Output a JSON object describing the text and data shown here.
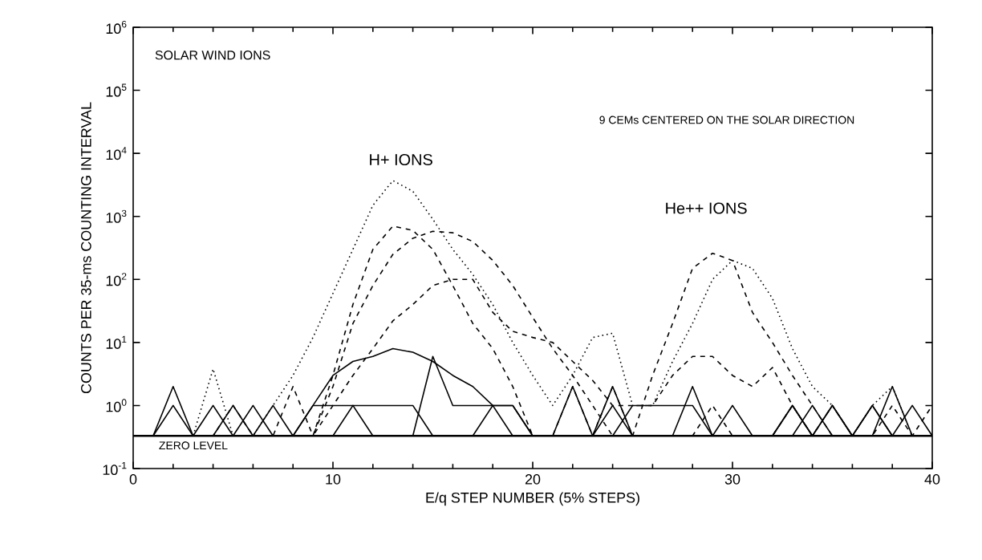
{
  "chart_data": {
    "type": "line",
    "xlabel": "E/q  STEP NUMBER  (5% STEPS)",
    "ylabel": "COUNTS PER 35-ms COUNTING INTERVAL",
    "x": [
      1,
      2,
      3,
      4,
      5,
      6,
      7,
      8,
      9,
      10,
      11,
      12,
      13,
      14,
      15,
      16,
      17,
      18,
      19,
      20,
      21,
      22,
      23,
      24,
      25,
      26,
      27,
      28,
      29,
      30,
      31,
      32,
      33,
      34,
      35,
      36,
      37,
      38,
      39,
      40
    ],
    "xlim": [
      0,
      40
    ],
    "xticks": [
      0,
      10,
      20,
      30,
      40
    ],
    "ylim": [
      0.1,
      1000000
    ],
    "log": "y",
    "yticks": [
      {
        "value": 0.1,
        "label": "10$^{-1}$"
      },
      {
        "value": 1,
        "label": "10$^{0}$"
      },
      {
        "value": 10,
        "label": "10$^{1}$"
      },
      {
        "value": 100,
        "label": "10$^{2}$"
      },
      {
        "value": 1000,
        "label": "10$^{3}$"
      },
      {
        "value": 10000,
        "label": "10$^{4}$"
      },
      {
        "value": 100000,
        "label": "10$^{5}$"
      },
      {
        "value": 1000000,
        "label": "10$^{6}$"
      }
    ],
    "grid": false,
    "marker": "none",
    "series": [
      {
        "color": "#000000",
        "line_style": "dotted",
        "values": [
          0.33,
          0.33,
          0.33,
          3.8,
          0.33,
          0.33,
          1,
          3,
          12,
          60,
          300,
          1500,
          3700,
          2500,
          900,
          300,
          120,
          40,
          10,
          3,
          1,
          3,
          12,
          14,
          1,
          1,
          5,
          20,
          100,
          200,
          150,
          50,
          8,
          2,
          1,
          0.33,
          1,
          2,
          0.33,
          0.33
        ]
      },
      {
        "color": "#000000",
        "line_style": "dashed",
        "values": [
          0.33,
          0.33,
          0.33,
          0.33,
          1,
          0.33,
          0.33,
          2,
          0.33,
          3,
          40,
          300,
          700,
          600,
          300,
          80,
          20,
          8,
          2,
          0.33,
          0.33,
          2,
          0.33,
          2,
          0.33,
          3,
          20,
          150,
          260,
          200,
          30,
          10,
          3,
          1,
          0.33,
          0.33,
          0.33,
          1,
          0.33,
          0.33
        ]
      },
      {
        "color": "#000000",
        "line_style": "dashed",
        "values": [
          0.33,
          0.33,
          0.33,
          0.33,
          0.33,
          0.33,
          0.33,
          0.33,
          0.33,
          2,
          20,
          80,
          250,
          450,
          580,
          550,
          400,
          200,
          80,
          25,
          8,
          3,
          1,
          0.33,
          0.33,
          0.33,
          0.33,
          0.33,
          1,
          0.33,
          0.33,
          0.33,
          1,
          0.33,
          1,
          0.33,
          0.33,
          0.33,
          0.33,
          1
        ]
      },
      {
        "color": "#000000",
        "line_style": "dashed",
        "values": [
          0.33,
          0.33,
          0.33,
          0.33,
          0.33,
          0.33,
          0.33,
          0.33,
          0.33,
          1,
          3,
          8,
          22,
          40,
          80,
          100,
          100,
          30,
          15,
          12,
          10,
          5,
          2.5,
          1,
          1,
          1,
          3,
          6,
          6,
          3,
          2,
          4,
          1,
          0.33,
          0.33,
          0.33,
          0.33,
          0.33,
          0.33,
          0.33
        ]
      },
      {
        "color": "#000000",
        "line_style": "solid",
        "values": [
          0.33,
          0.33,
          0.33,
          0.33,
          0.33,
          0.33,
          0.33,
          0.33,
          1,
          3,
          5,
          6,
          8,
          7,
          5,
          3,
          2,
          1,
          1,
          0.33,
          0.33,
          0.33,
          0.33,
          1,
          0.33,
          0.33,
          0.33,
          0.33,
          0.33,
          0.33,
          0.33,
          0.33,
          1,
          0.33,
          1,
          0.33,
          1,
          0.33,
          0.33,
          0.33
        ]
      },
      {
        "color": "#000000",
        "line_style": "solid",
        "values": [
          0.33,
          2,
          0.33,
          1,
          0.33,
          1,
          0.33,
          0.33,
          1,
          1,
          1,
          1,
          1,
          1,
          0.33,
          0.33,
          0.33,
          1,
          0.33,
          0.33,
          0.33,
          0.33,
          0.33,
          2,
          0.33,
          0.33,
          0.33,
          2,
          0.33,
          1,
          0.33,
          0.33,
          0.33,
          1,
          0.33,
          0.33,
          0.33,
          2,
          0.33,
          0.33
        ]
      },
      {
        "color": "#000000",
        "line_style": "solid",
        "values": [
          0.33,
          1,
          0.33,
          0.33,
          1,
          0.33,
          1,
          0.33,
          0.33,
          0.33,
          1,
          0.33,
          0.33,
          0.33,
          6,
          1,
          1,
          1,
          1,
          0.33,
          0.33,
          2,
          0.33,
          0.33,
          1,
          1,
          1,
          1,
          0.33,
          0.33,
          0.33,
          0.33,
          1,
          0.33,
          1,
          0.33,
          1,
          0.33,
          1,
          0.33
        ]
      }
    ],
    "ref_lines": [
      {
        "axis": "y",
        "value": 0.33,
        "label": "ZERO LEVEL",
        "line_style": "solid"
      }
    ],
    "annotations": [
      "SOLAR WIND IONS",
      "9 CEMs CENTERED ON THE SOLAR DIRECTION",
      "H+ IONS",
      "He++ IONS"
    ]
  }
}
